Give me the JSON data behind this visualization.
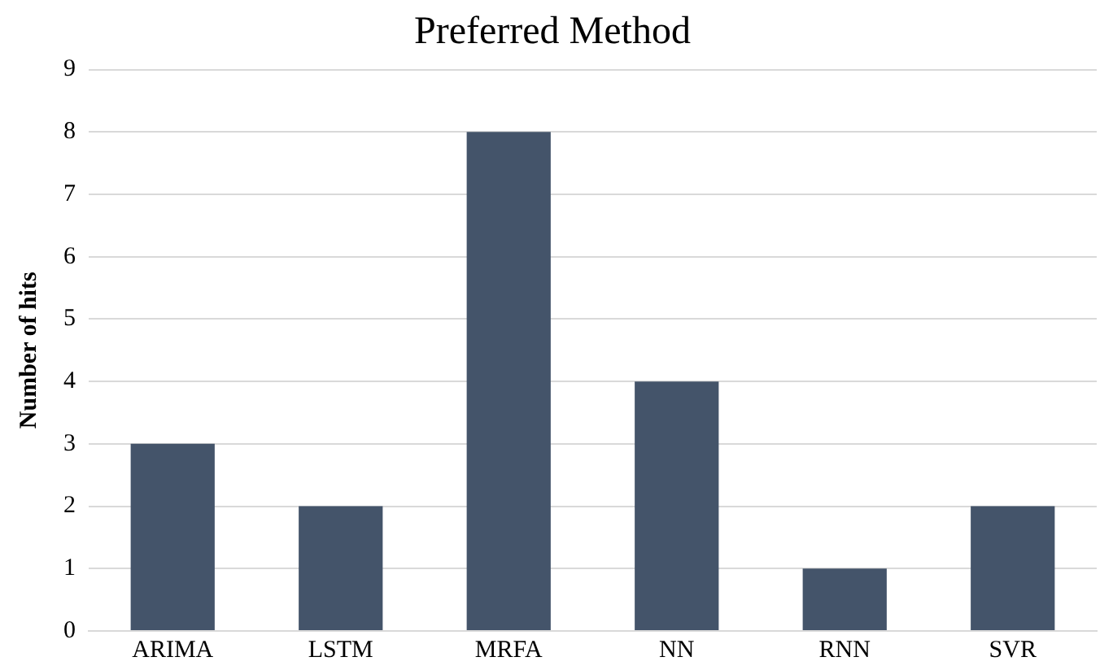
{
  "chart_data": {
    "type": "bar",
    "title": "Preferred Method",
    "ylabel": "Number of hits",
    "categories": [
      "ARIMA",
      "LSTM",
      "MRFA",
      "NN",
      "RNN",
      "SVR"
    ],
    "values": [
      3,
      2,
      8,
      4,
      1,
      2
    ],
    "color": "#44546a",
    "ylim": [
      0,
      9
    ],
    "yticks": [
      0,
      1,
      2,
      3,
      4,
      5,
      6,
      7,
      8,
      9
    ],
    "grid": "y"
  }
}
